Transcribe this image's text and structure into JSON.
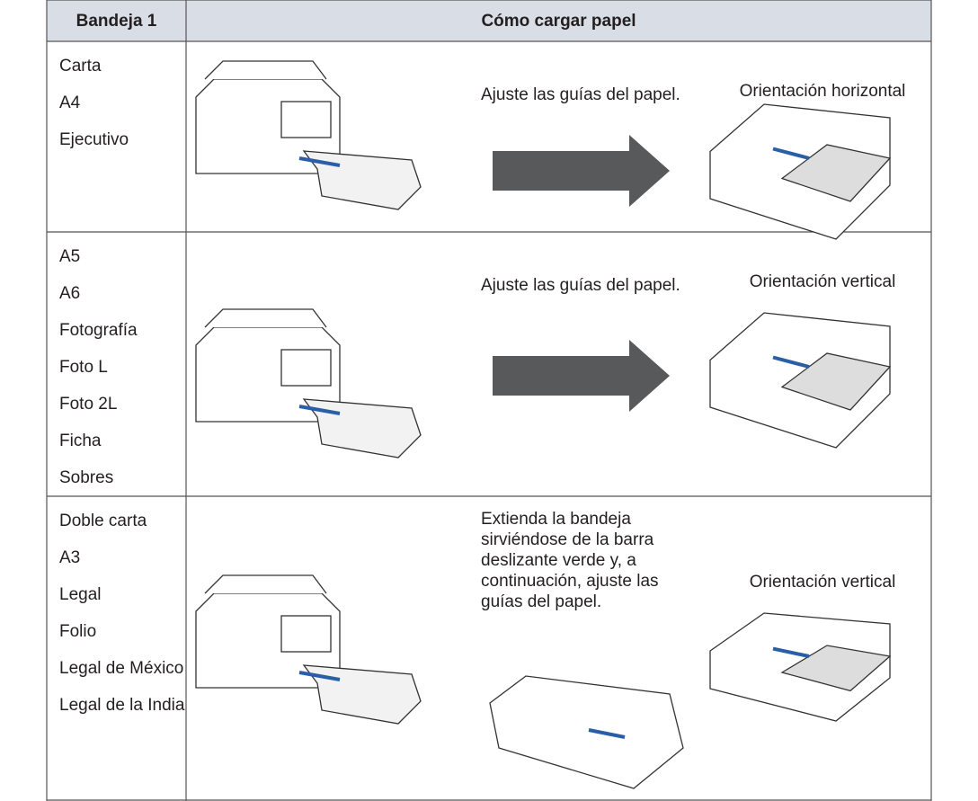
{
  "table": {
    "header": [
      "Bandeja 1",
      "Cómo cargar papel"
    ],
    "rows": [
      {
        "sizes": [
          "Carta",
          "A4",
          "Ejecutivo"
        ],
        "instruction": "Ajuste las guías del papel.",
        "orientation": "Orientación horizontal"
      },
      {
        "sizes": [
          "A5",
          "A6",
          "Fotografía",
          "Foto L",
          "Foto 2L",
          "Ficha",
          "Sobres"
        ],
        "instruction": "Ajuste las guías del papel.",
        "orientation": "Orientación vertical"
      },
      {
        "sizes": [
          "Doble carta",
          "A3",
          "Legal",
          "Folio",
          "Legal de México",
          "Legal de la India"
        ],
        "instruction": "Extienda la bandeja sirviéndose de la barra deslizante verde y, a continuación, ajuste las guías del papel.",
        "orientation": "Orientación vertical"
      }
    ]
  }
}
